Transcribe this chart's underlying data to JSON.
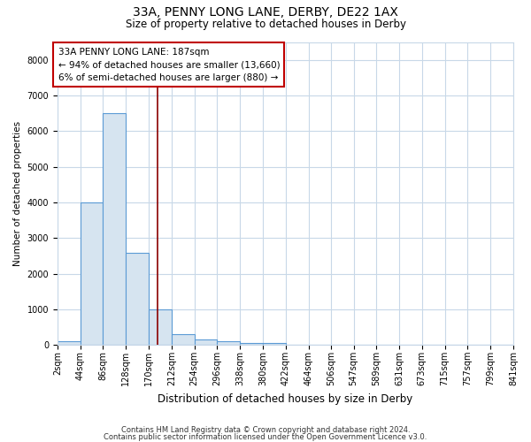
{
  "title1": "33A, PENNY LONG LANE, DERBY, DE22 1AX",
  "title2": "Size of property relative to detached houses in Derby",
  "xlabel": "Distribution of detached houses by size in Derby",
  "ylabel": "Number of detached properties",
  "bin_edges": [
    2,
    44,
    86,
    128,
    170,
    212,
    254,
    296,
    338,
    380,
    422,
    464,
    506,
    547,
    589,
    631,
    673,
    715,
    757,
    799,
    841
  ],
  "bar_heights": [
    100,
    4000,
    6500,
    2600,
    1000,
    300,
    150,
    100,
    50,
    50,
    0,
    0,
    0,
    0,
    0,
    0,
    0,
    0,
    0,
    0
  ],
  "bar_color": "#d6e4f0",
  "bar_edge_color": "#5b9bd5",
  "property_size": 187,
  "vline_color": "#8b0000",
  "annotation_box_color": "#c00000",
  "annotation_line1": "33A PENNY LONG LANE: 187sqm",
  "annotation_line2": "← 94% of detached houses are smaller (13,660)",
  "annotation_line3": "6% of semi-detached houses are larger (880) →",
  "ylim": [
    0,
    8500
  ],
  "yticks": [
    0,
    1000,
    2000,
    3000,
    4000,
    5000,
    6000,
    7000,
    8000
  ],
  "footer1": "Contains HM Land Registry data © Crown copyright and database right 2024.",
  "footer2": "Contains public sector information licensed under the Open Government Licence v3.0.",
  "bg_color": "#ffffff",
  "grid_color": "#c8d8e8",
  "title1_fontsize": 10,
  "title2_fontsize": 8.5,
  "annotation_fontsize": 7.5,
  "ylabel_fontsize": 7.5,
  "xlabel_fontsize": 8.5,
  "tick_fontsize": 7,
  "footer_fontsize": 6
}
